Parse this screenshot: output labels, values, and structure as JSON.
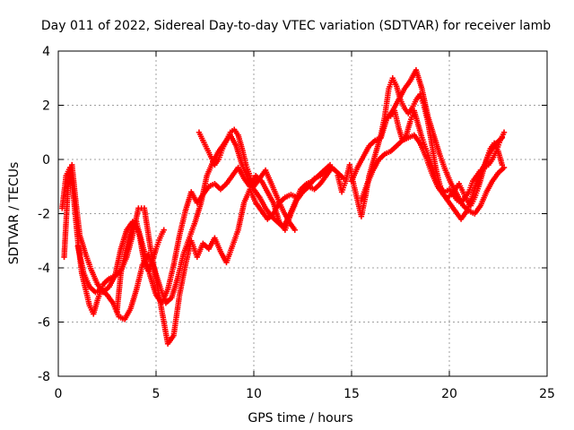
{
  "chart_data": {
    "type": "scatter",
    "title": "Day 011 of 2022, Sidereal Day-to-day VTEC variation (SDTVAR) for receiver lamb",
    "xlabel": "GPS time / hours",
    "ylabel": "SDTVAR / TECUs",
    "xlim": [
      0,
      25
    ],
    "ylim": [
      -8,
      4
    ],
    "xticks": [
      0,
      5,
      10,
      15,
      20,
      25
    ],
    "yticks": [
      -8,
      -6,
      -4,
      -2,
      0,
      2,
      4
    ],
    "xtick_labels": [
      "0",
      "5",
      "10",
      "15",
      "20",
      "25"
    ],
    "ytick_labels": [
      "-8",
      "-6",
      "-4",
      "-2",
      "0",
      "2",
      "4"
    ],
    "grid": true,
    "marker": "+",
    "color": "#ff0000",
    "series": [
      {
        "x": [
          0.2,
          0.4,
          0.6,
          0.8,
          1.0,
          1.2,
          1.4,
          1.6,
          1.8,
          2.0,
          2.3,
          2.6,
          2.9,
          3.2,
          3.5,
          3.8,
          4.1,
          4.4,
          4.7,
          5.0,
          5.3,
          5.6,
          5.9,
          6.2,
          6.5,
          6.8,
          7.1,
          7.4,
          7.7,
          8.0,
          8.3,
          8.6,
          8.9,
          9.2,
          9.5,
          9.8,
          10.1,
          10.4,
          10.7,
          11.0,
          11.3,
          11.6,
          11.9,
          12.2,
          12.5,
          12.8,
          13.1,
          13.4,
          13.7,
          14.0
        ],
        "y": [
          -1.8,
          -0.6,
          -0.3,
          -1.5,
          -3.0,
          -4.2,
          -4.8,
          -5.4,
          -5.7,
          -5.2,
          -4.6,
          -4.4,
          -4.3,
          -4.1,
          -3.6,
          -2.8,
          -1.8,
          -1.8,
          -3.2,
          -4.4,
          -5.6,
          -6.8,
          -6.5,
          -5.0,
          -3.9,
          -3.0,
          -3.6,
          -3.1,
          -3.3,
          -2.9,
          -3.4,
          -3.8,
          -3.2,
          -2.6,
          -1.6,
          -1.1,
          -1.6,
          -1.9,
          -2.2,
          -2.0,
          -1.6,
          -1.4,
          -1.3,
          -1.4,
          -1.2,
          -1.0,
          -1.1,
          -0.9,
          -0.6,
          -0.3
        ]
      },
      {
        "x": [
          0.3,
          0.5,
          0.7,
          0.9,
          1.1,
          1.4,
          1.7,
          2.0,
          2.3,
          2.6,
          2.9,
          3.2,
          3.5,
          3.8,
          4.1,
          4.4,
          4.7,
          5.0,
          5.3,
          5.6,
          5.9,
          6.2,
          6.5,
          6.8,
          7.1,
          7.4,
          7.7,
          8.0,
          8.3,
          8.6,
          8.9,
          9.2,
          9.5,
          9.8,
          10.1,
          10.4,
          10.7,
          11.0,
          11.3,
          11.6,
          11.9,
          12.2,
          12.5,
          12.8,
          13.1,
          13.4,
          13.7,
          14.0,
          14.3,
          14.6
        ],
        "y": [
          -3.6,
          -1.0,
          -0.2,
          -1.6,
          -2.8,
          -3.5,
          -4.1,
          -4.6,
          -4.9,
          -4.7,
          -4.3,
          -3.3,
          -2.6,
          -2.3,
          -2.6,
          -3.4,
          -4.3,
          -5.0,
          -5.3,
          -4.8,
          -3.9,
          -2.8,
          -1.9,
          -1.2,
          -1.6,
          -1.3,
          -1.0,
          -0.9,
          -1.1,
          -0.9,
          -0.6,
          -0.3,
          -0.7,
          -1.0,
          -0.6,
          -0.8,
          -1.2,
          -1.6,
          -2.3,
          -2.6,
          -2.0,
          -1.5,
          -1.2,
          -1.0,
          -0.7,
          -0.6,
          -0.4,
          -0.3,
          -0.5,
          -0.7
        ]
      },
      {
        "x": [
          1.0,
          1.3,
          1.6,
          1.9,
          2.2,
          2.5,
          2.8,
          3.1,
          3.4,
          3.7,
          4.0,
          4.3,
          4.6,
          4.9,
          5.2,
          5.5,
          5.8,
          6.1,
          6.4,
          6.7,
          7.0,
          7.3,
          7.6,
          7.9,
          8.2,
          8.5,
          8.8,
          9.1,
          9.4,
          9.7,
          10.0,
          10.3,
          10.6,
          10.9,
          11.2,
          11.5,
          11.8,
          12.1,
          12.4,
          12.7,
          13.0,
          13.3,
          13.6,
          13.9
        ],
        "y": [
          -3.2,
          -4.2,
          -4.7,
          -4.9,
          -4.8,
          -5.0,
          -5.3,
          -5.8,
          -5.9,
          -5.5,
          -4.8,
          -3.9,
          -3.5,
          -4.0,
          -4.7,
          -5.3,
          -5.1,
          -4.4,
          -3.5,
          -2.9,
          -2.3,
          -1.6,
          -0.6,
          -0.1,
          0.3,
          0.6,
          0.9,
          0.5,
          -0.2,
          -0.7,
          -1.1,
          -1.4,
          -1.8,
          -2.1,
          -2.3,
          -2.5,
          -2.1,
          -1.6,
          -1.1,
          -0.9,
          -0.8,
          -0.6,
          -0.4,
          -0.2
        ]
      },
      {
        "x": [
          3.0,
          3.2,
          3.4,
          3.6,
          3.8,
          4.0,
          4.2,
          4.4,
          4.6,
          4.8,
          5.0,
          5.2,
          5.4
        ],
        "y": [
          -5.6,
          -4.2,
          -3.5,
          -2.9,
          -2.4,
          -2.3,
          -3.0,
          -3.8,
          -4.1,
          -3.8,
          -3.3,
          -2.9,
          -2.6
        ]
      },
      {
        "x": [
          7.2,
          7.4,
          7.6,
          7.8,
          8.0,
          8.2,
          8.4,
          8.6,
          8.8,
          9.0,
          9.2,
          9.4,
          9.6,
          9.8,
          10.0,
          10.3,
          10.6,
          10.9,
          11.2,
          11.5,
          11.8,
          12.1
        ],
        "y": [
          1.0,
          0.7,
          0.4,
          0.1,
          -0.2,
          0.0,
          0.4,
          0.7,
          1.0,
          1.1,
          0.9,
          0.4,
          -0.2,
          -0.6,
          -1.0,
          -0.7,
          -0.4,
          -0.9,
          -1.4,
          -1.9,
          -2.3,
          -2.6
        ]
      },
      {
        "x": [
          14.3,
          14.5,
          14.7,
          14.9,
          15.1,
          15.3,
          15.5,
          15.7,
          15.9,
          16.1,
          16.3,
          16.5,
          16.7,
          16.9,
          17.1,
          17.3,
          17.5,
          17.7,
          17.9,
          18.1,
          18.3,
          18.5,
          18.7,
          18.9,
          19.1,
          19.3,
          19.5,
          19.7,
          19.9,
          20.1,
          20.3,
          20.5,
          20.7,
          20.9,
          21.1,
          21.3,
          21.5,
          21.7,
          21.9,
          22.1,
          22.3,
          22.5,
          22.7
        ],
        "y": [
          -0.6,
          -1.2,
          -0.8,
          -0.2,
          -0.9,
          -1.5,
          -2.1,
          -1.4,
          -0.6,
          -0.1,
          0.4,
          0.9,
          1.6,
          2.6,
          3.0,
          2.7,
          2.2,
          1.9,
          1.7,
          1.9,
          2.2,
          2.4,
          2.0,
          1.4,
          0.6,
          -0.3,
          -0.9,
          -1.3,
          -1.4,
          -1.3,
          -1.1,
          -0.9,
          -1.2,
          -1.5,
          -1.7,
          -1.4,
          -1.0,
          -0.5,
          0.0,
          0.4,
          0.6,
          0.3,
          -0.2
        ]
      },
      {
        "x": [
          15.0,
          15.3,
          15.6,
          15.9,
          16.2,
          16.5,
          16.8,
          17.1,
          17.4,
          17.7,
          18.0,
          18.3,
          18.6,
          18.9,
          19.2,
          19.5,
          19.8,
          20.1,
          20.4,
          20.7,
          21.0,
          21.3,
          21.6,
          21.9,
          22.2,
          22.5,
          22.8
        ],
        "y": [
          -0.8,
          -0.3,
          0.1,
          0.5,
          0.7,
          0.8,
          1.5,
          1.8,
          2.2,
          2.6,
          2.9,
          3.3,
          2.6,
          1.6,
          0.9,
          0.2,
          -0.4,
          -0.9,
          -1.3,
          -1.7,
          -1.9,
          -2.0,
          -1.7,
          -1.2,
          -0.8,
          -0.5,
          -0.3
        ]
      },
      {
        "x": [
          15.5,
          15.8,
          16.1,
          16.4,
          16.7,
          17.0,
          17.3,
          17.6,
          17.9,
          18.2,
          18.5,
          18.8,
          19.1,
          19.4,
          19.7,
          20.0,
          20.3,
          20.6,
          20.9,
          21.2,
          21.5,
          21.8,
          22.1,
          22.4,
          22.7
        ],
        "y": [
          -1.5,
          -0.9,
          -0.4,
          0.0,
          0.2,
          0.3,
          0.5,
          0.7,
          0.8,
          0.9,
          0.6,
          0.1,
          -0.5,
          -1.0,
          -1.3,
          -1.6,
          -1.9,
          -2.2,
          -1.9,
          -1.3,
          -0.6,
          -0.2,
          0.3,
          0.6,
          0.8
        ]
      },
      {
        "x": [
          17.0,
          17.2,
          17.4,
          17.6,
          17.8,
          18.0,
          18.2,
          18.4,
          18.6,
          18.8,
          19.0,
          19.2,
          19.4,
          19.6,
          19.8,
          20.0,
          20.2,
          20.4,
          20.6,
          20.8,
          21.0,
          21.2,
          21.4,
          21.6,
          21.8,
          22.0,
          22.2,
          22.4,
          22.6,
          22.8
        ],
        "y": [
          1.6,
          1.8,
          1.2,
          0.7,
          0.9,
          1.4,
          1.8,
          1.3,
          0.8,
          0.4,
          0.0,
          -0.5,
          -0.9,
          -1.1,
          -1.2,
          -1.1,
          -1.3,
          -1.5,
          -1.6,
          -1.4,
          -1.2,
          -0.8,
          -0.6,
          -0.4,
          -0.3,
          -0.2,
          0.0,
          0.3,
          0.7,
          1.0
        ]
      }
    ]
  }
}
